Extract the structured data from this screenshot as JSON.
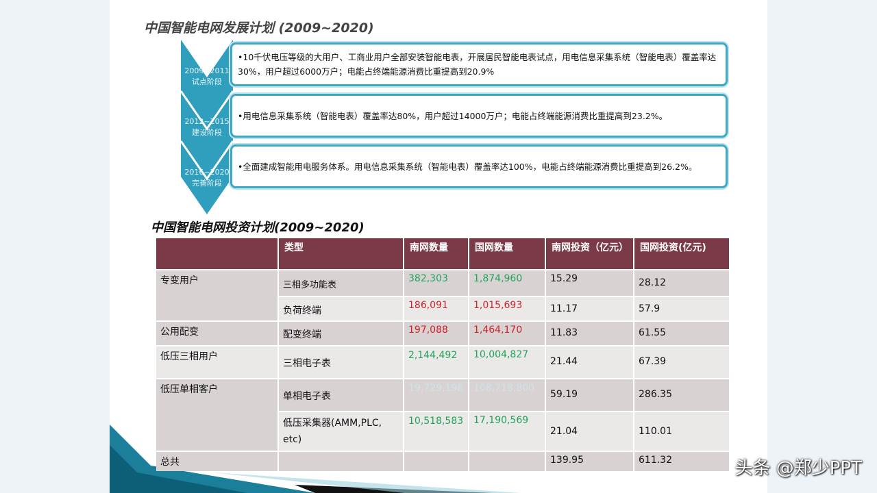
{
  "title1": "中国智能电网发展计划 (2009~2020)",
  "stages": [
    {
      "years": "2009~2011",
      "name": "试点阶段",
      "text": "•10千伏电压等级的大用户、工商业用户全部安装智能电表，开展居民智能电表试点，用电信息采集系统（智能电表）覆盖率达30%，用户超过6000万户；电能占终端能源消费比重提高到20.9%"
    },
    {
      "years": "2012~2015",
      "name": "建设阶段",
      "text": "•用电信息采集系统（智能电表）覆盖率达80%，用户超过14000万户；电能占终端能源消费比重提高到23.2%。"
    },
    {
      "years": "2016~2020",
      "name": "完善阶段",
      "text": "•全面建成智能用电服务体系。用电信息采集系统（智能电表）覆盖率达100%，电能占终端能源消费比重提高到26.2%。"
    }
  ],
  "title2": "中国智能电网投资计划(2009~2020)",
  "table": {
    "headers": [
      "",
      "类型",
      "南网数量",
      "国网数量",
      "南网投资（亿元）",
      "国网投资(亿元)"
    ],
    "groups": [
      "专变用户",
      "公用配变",
      "低压三相用户",
      "低压单相客户",
      "总共"
    ],
    "rows": [
      {
        "type": "三相多功能表",
        "south": "382,303",
        "state": "1,874,960",
        "si": "15.29",
        "gi": "28.12"
      },
      {
        "type": "负荷终端",
        "south": "186,091",
        "state": "1,015,693",
        "si": "11.17",
        "gi": "57.9"
      },
      {
        "type": "配变终端",
        "south": "197,088",
        "state": "1,464,170",
        "si": "11.83",
        "gi": "61.55"
      },
      {
        "type": "三相电子表",
        "south": "2,144,492",
        "state": "10,004,827",
        "si": "21.44",
        "gi": "67.39"
      },
      {
        "type": "单相电子表",
        "south": "19,729,198",
        "state": "108,718,800",
        "si": "59.19",
        "gi": "286.35"
      },
      {
        "type": "低压采集器(AMM,PLC, etc)",
        "south": "10,518,583",
        "state": "17,190,569",
        "si": "21.04",
        "gi": "110.01"
      }
    ],
    "total": {
      "si": "139.95",
      "gi": "611.32"
    }
  },
  "watermark": "头条 @郑少PPT",
  "colors": {
    "header": "#7b3a48",
    "accent": "#3ba8c4",
    "green": "#1fa35a",
    "red": "#d0212a"
  }
}
